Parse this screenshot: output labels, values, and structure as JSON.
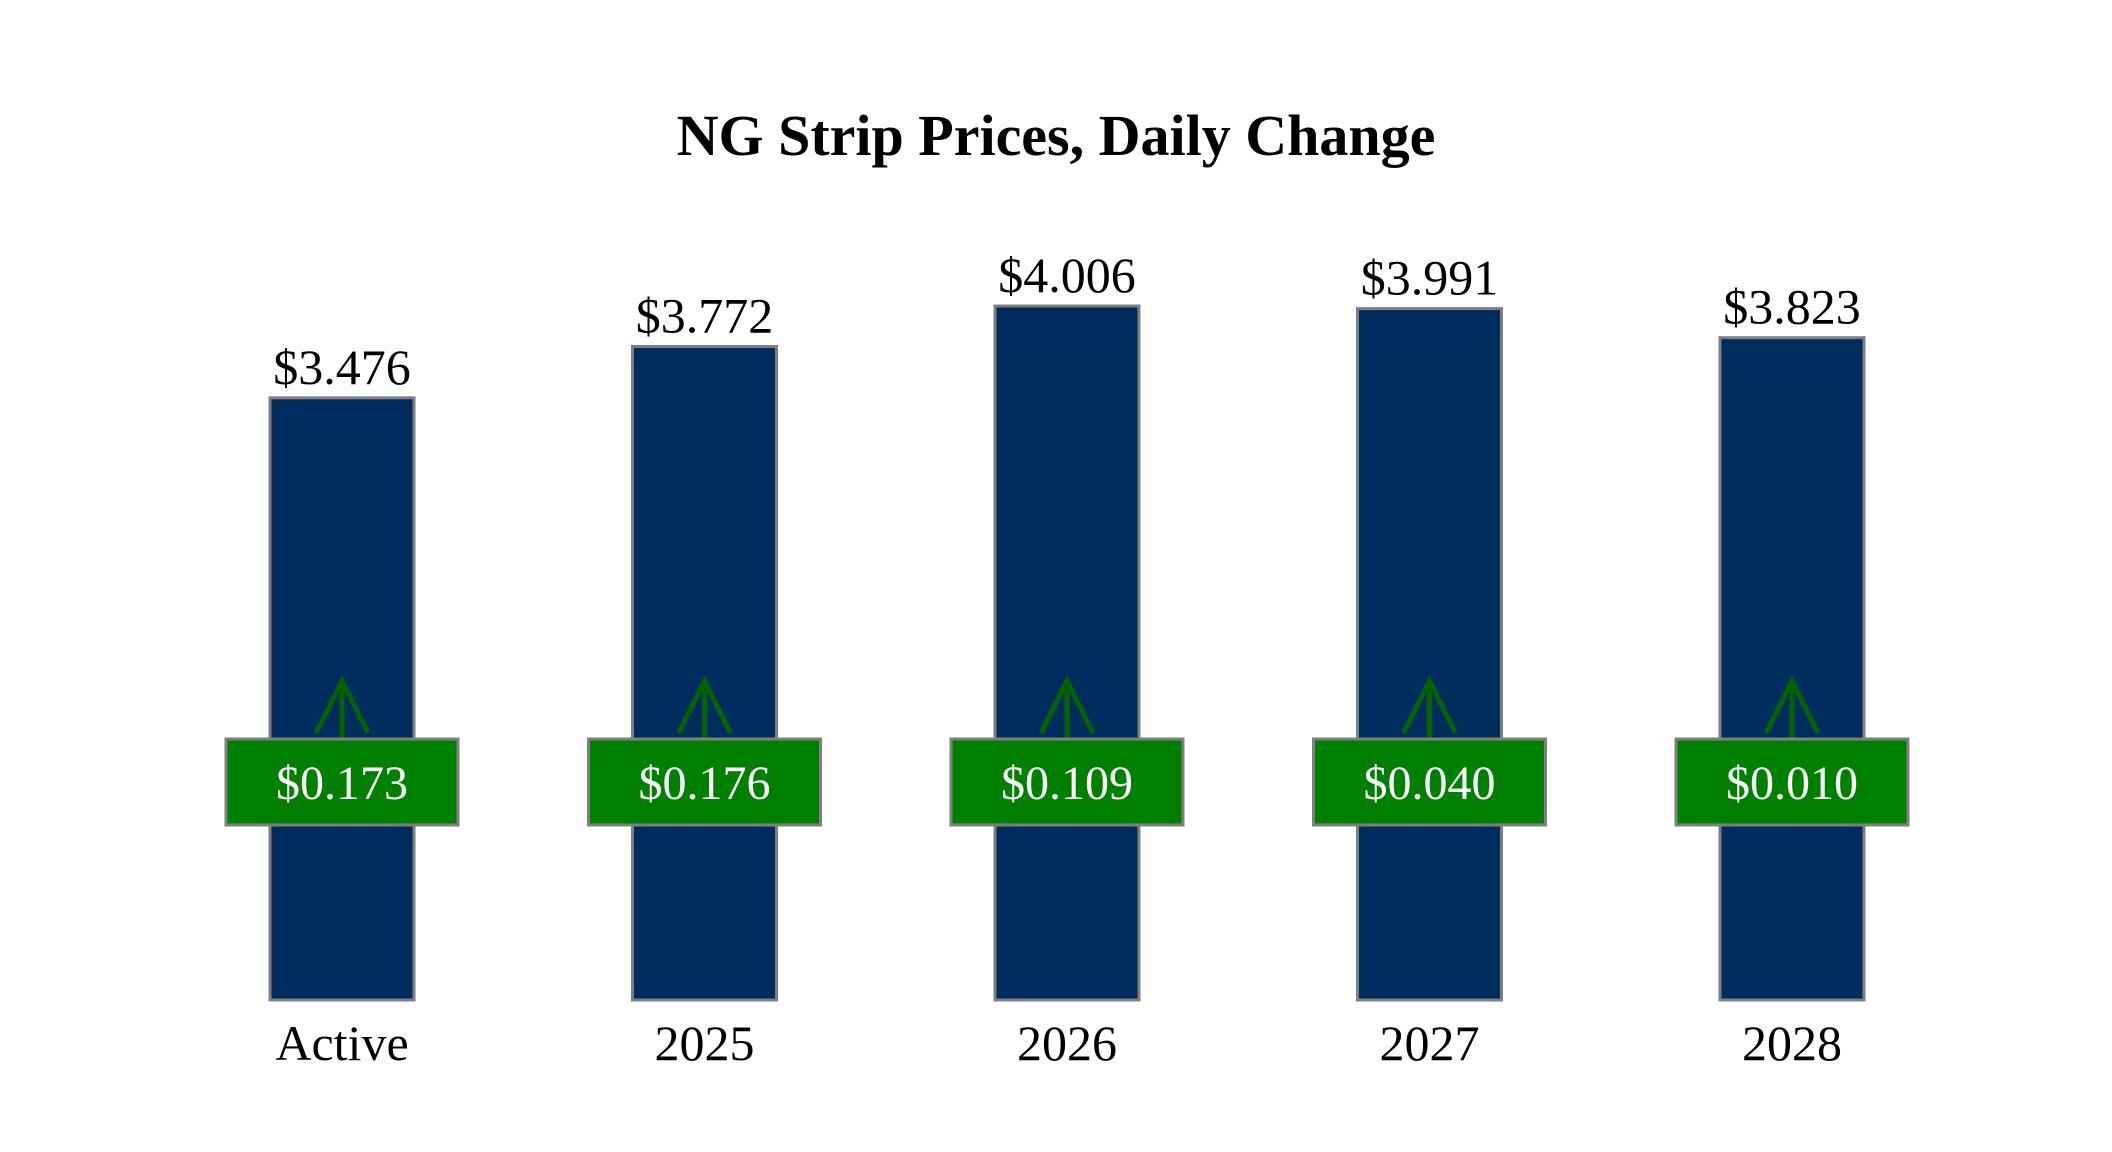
{
  "chart_data": {
    "type": "bar",
    "title": "NG Strip Prices, Daily Change",
    "categories": [
      "Active",
      "2025",
      "2026",
      "2027",
      "2028"
    ],
    "values": [
      3.476,
      3.772,
      4.006,
      3.991,
      3.823
    ],
    "value_labels": [
      "$3.476",
      "$3.772",
      "$4.006",
      "$3.991",
      "$3.823"
    ],
    "change_values": [
      0.173,
      0.176,
      0.109,
      0.04,
      0.01
    ],
    "change_labels": [
      "$0.173",
      "$0.176",
      "$0.109",
      "$0.040",
      "$0.010"
    ],
    "change_direction": [
      "up",
      "up",
      "up",
      "up",
      "up"
    ],
    "ylim": [
      0,
      4.006
    ],
    "xlabel": "",
    "ylabel": "",
    "grid": false,
    "legend": "none",
    "colors": {
      "bar": "#002D5E",
      "bar_edge": "#7F7F7F",
      "change_box": "#008000",
      "change_box_edge": "#7F7F7F",
      "change_text": "#FFFFFF",
      "arrow": "#006400"
    }
  }
}
